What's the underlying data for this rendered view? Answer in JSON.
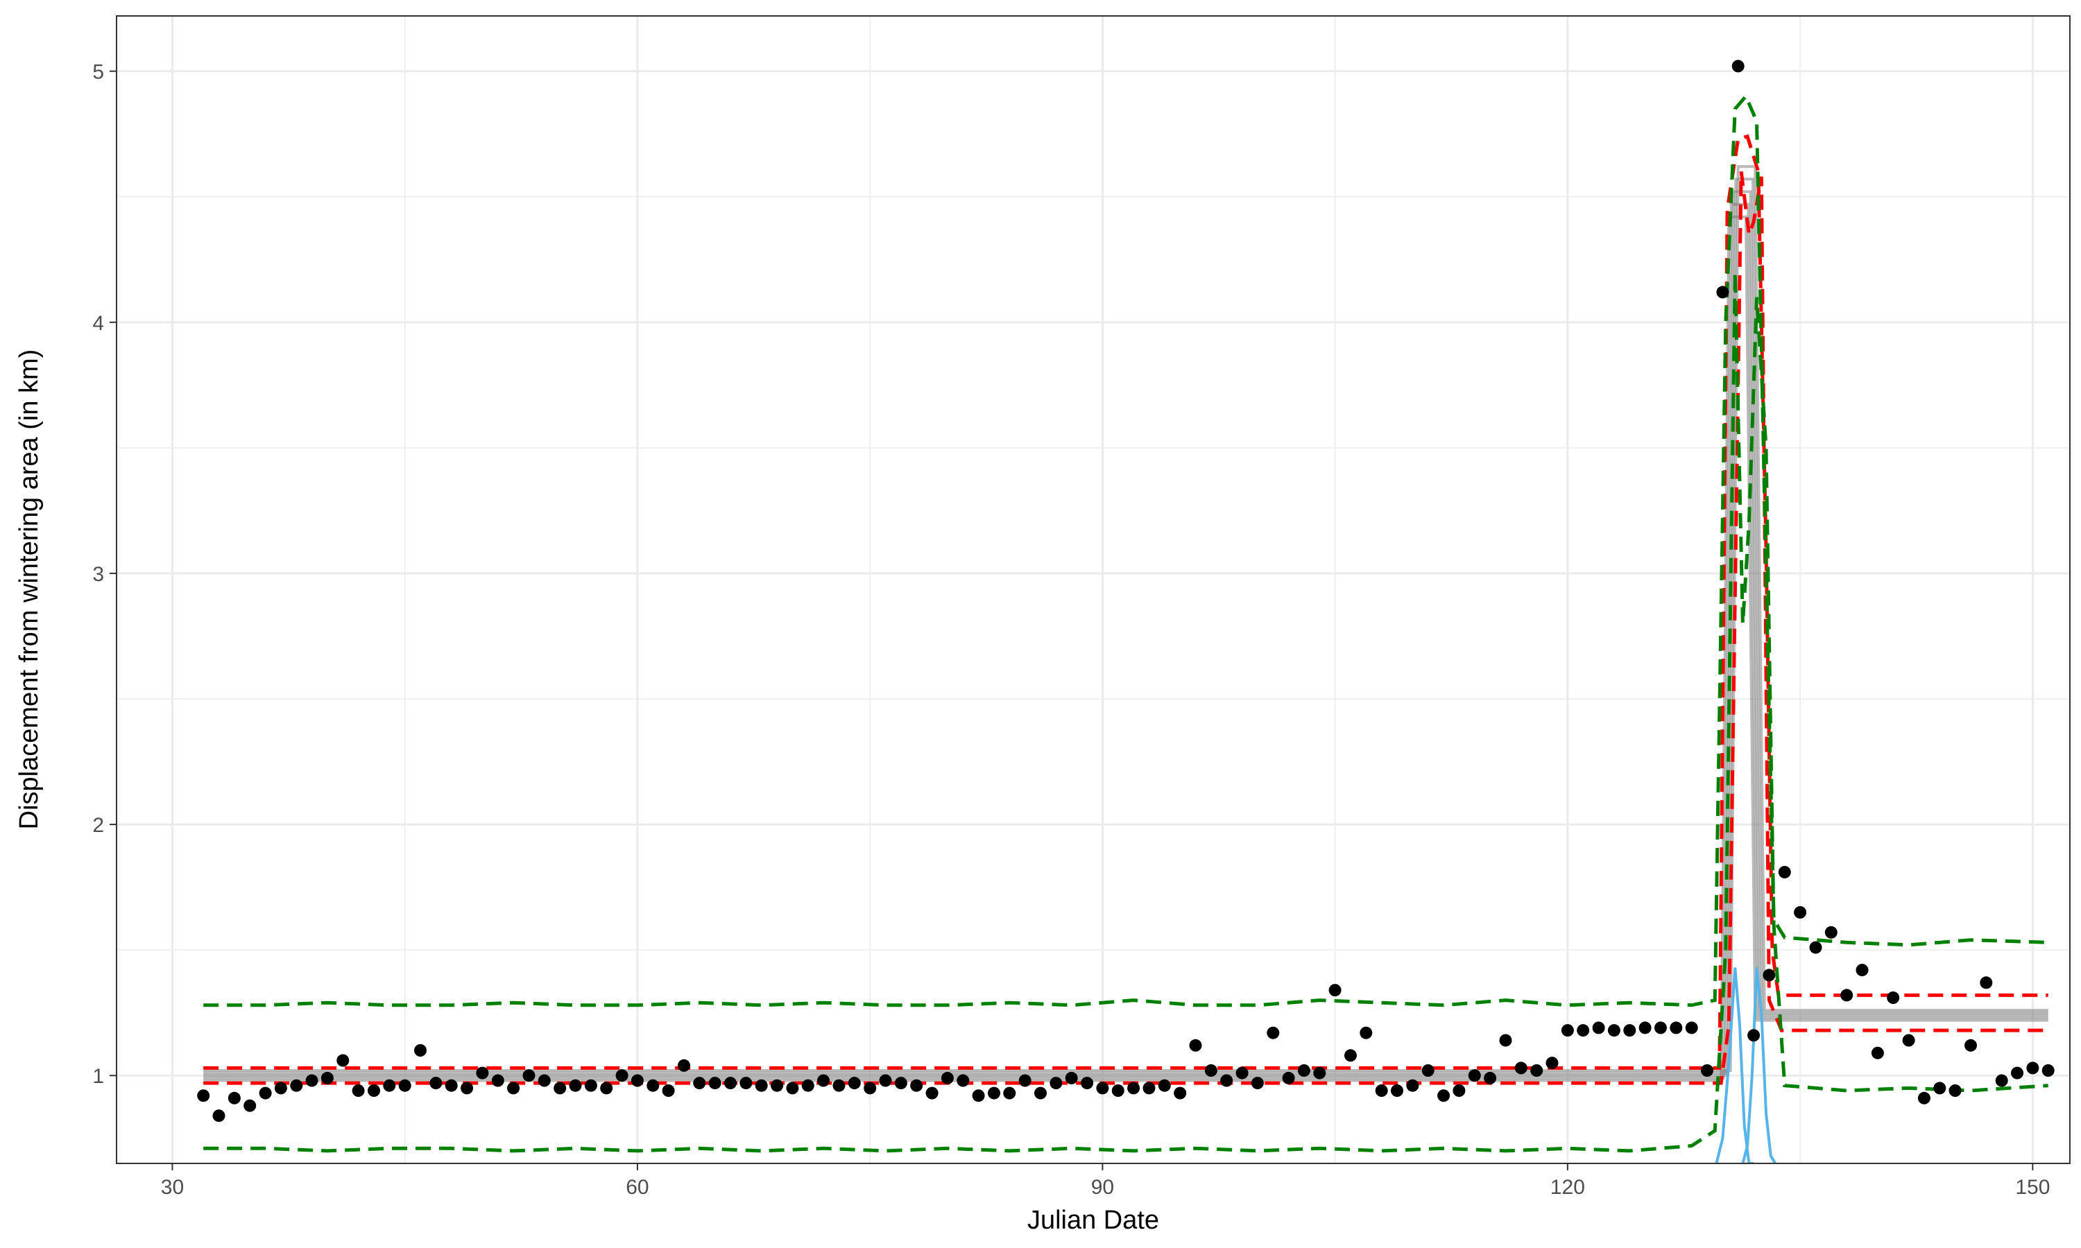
{
  "chart_data": {
    "type": "scatter",
    "title": "",
    "xlabel": "Julian Date",
    "ylabel": "Displacement from wintering area (in km)",
    "xlim": [
      26.4,
      152.4
    ],
    "ylim": [
      0.65,
      5.22
    ],
    "xticks": [
      30,
      60,
      90,
      120,
      150
    ],
    "xtick_labels": [
      "30",
      "60",
      "90",
      "120",
      "150"
    ],
    "yticks": [
      1,
      2,
      3,
      4,
      5
    ],
    "ytick_labels": [
      "1",
      "2",
      "3",
      "4",
      "5"
    ],
    "grid": true,
    "legend": "none",
    "colors": {
      "points": "#000000",
      "fit_lines": "#808080",
      "fit_ci": "#ff0000",
      "prediction_band": "#008000",
      "transition_density": "#56b4e9",
      "grid": "#ebebeb"
    },
    "points": {
      "x": [
        32,
        33,
        34,
        35,
        36,
        37,
        38,
        39,
        40,
        41,
        42,
        43,
        44,
        45,
        46,
        47,
        48,
        49,
        50,
        51,
        52,
        53,
        54,
        55,
        56,
        57,
        58,
        59,
        60,
        61,
        62,
        63,
        64,
        65,
        66,
        67,
        68,
        69,
        70,
        71,
        72,
        73,
        74,
        75,
        76,
        77,
        78,
        79,
        80,
        81,
        82,
        83,
        84,
        85,
        86,
        87,
        88,
        89,
        90,
        91,
        92,
        93,
        94,
        95,
        96,
        97,
        98,
        99,
        100,
        101,
        102,
        103,
        104,
        105,
        106,
        107,
        108,
        109,
        110,
        111,
        112,
        113,
        114,
        115,
        116,
        117,
        118,
        119,
        120,
        121,
        122,
        123,
        124,
        125,
        126,
        127,
        128,
        129,
        130,
        131,
        132,
        133,
        134,
        135,
        136,
        137,
        138,
        139,
        140,
        141,
        142,
        143,
        144,
        145,
        146,
        147,
        148,
        149,
        150,
        151
      ],
      "y": [
        0.92,
        0.84,
        0.91,
        0.88,
        0.93,
        0.95,
        0.96,
        0.98,
        0.99,
        1.06,
        0.94,
        0.94,
        0.96,
        0.96,
        1.1,
        0.97,
        0.96,
        0.95,
        1.01,
        0.98,
        0.95,
        1.0,
        0.98,
        0.95,
        0.96,
        0.96,
        0.95,
        1.0,
        0.98,
        0.96,
        0.94,
        1.04,
        0.97,
        0.97,
        0.97,
        0.97,
        0.96,
        0.96,
        0.95,
        0.96,
        0.98,
        0.96,
        0.97,
        0.95,
        0.98,
        0.97,
        0.96,
        0.93,
        0.99,
        0.98,
        0.92,
        0.93,
        0.93,
        0.98,
        0.93,
        0.97,
        0.99,
        0.97,
        0.95,
        0.94,
        0.95,
        0.95,
        0.96,
        0.93,
        1.12,
        1.02,
        0.98,
        1.01,
        0.97,
        1.17,
        0.99,
        1.02,
        1.01,
        1.34,
        1.08,
        1.17,
        0.94,
        0.94,
        0.96,
        1.02,
        0.92,
        0.94,
        1.0,
        0.99,
        1.14,
        1.03,
        1.02,
        1.05,
        1.18,
        1.18,
        1.19,
        1.18,
        1.18,
        1.19,
        1.19,
        1.19,
        1.19,
        1.02,
        4.12,
        5.02,
        1.16,
        1.4,
        1.81,
        1.65,
        1.51,
        1.57,
        1.32,
        1.42,
        1.09,
        1.31,
        1.14,
        0.91,
        0.95,
        0.94,
        1.12,
        1.37,
        0.98,
        1.01,
        1.03,
        1.02
      ]
    },
    "fit_lines": {
      "x": [
        32,
        130.2,
        130.7,
        131.8,
        132.4,
        133.2,
        151
      ],
      "y": [
        1.0,
        1.0,
        4.52,
        4.52,
        1.24,
        1.24,
        1.24
      ]
    },
    "fit_ci_upper": {
      "x": [
        32,
        129.8,
        130.3,
        131.0,
        131.6,
        132.3,
        132.8,
        133.2,
        133.6,
        151
      ],
      "y": [
        1.03,
        1.03,
        4.45,
        4.73,
        4.74,
        4.6,
        3.1,
        1.5,
        1.32,
        1.32
      ]
    },
    "fit_ci_lower": {
      "x": [
        32,
        129.9,
        130.4,
        131.2,
        131.7,
        132.0,
        132.5,
        133.0,
        133.8,
        151
      ],
      "y": [
        0.97,
        0.97,
        1.2,
        4.6,
        4.35,
        4.4,
        4.58,
        1.3,
        1.18,
        1.18
      ]
    },
    "prediction_band_upper": {
      "x": [
        32,
        36,
        40,
        44,
        48,
        52,
        56,
        60,
        64,
        68,
        72,
        76,
        80,
        84,
        88,
        92,
        96,
        100,
        104,
        108,
        112,
        116,
        120,
        124,
        128,
        129.5,
        130.2,
        130.8,
        131.5,
        132.2,
        132.8,
        133.3,
        134,
        138,
        142,
        146,
        151
      ],
      "y": [
        1.28,
        1.28,
        1.29,
        1.28,
        1.28,
        1.29,
        1.28,
        1.28,
        1.29,
        1.28,
        1.29,
        1.28,
        1.28,
        1.29,
        1.28,
        1.3,
        1.28,
        1.28,
        1.3,
        1.29,
        1.28,
        1.3,
        1.28,
        1.29,
        1.28,
        1.3,
        4.0,
        4.85,
        4.9,
        4.8,
        3.0,
        1.62,
        1.55,
        1.53,
        1.52,
        1.54,
        1.53
      ]
    },
    "prediction_band_lower": {
      "x": [
        32,
        36,
        40,
        44,
        48,
        52,
        56,
        60,
        64,
        68,
        72,
        76,
        80,
        84,
        88,
        92,
        96,
        100,
        104,
        108,
        112,
        116,
        120,
        124,
        128,
        129.5,
        130.2,
        130.8,
        131.3,
        131.7,
        132.2,
        132.8,
        133.3,
        134,
        138,
        142,
        146,
        151
      ],
      "y": [
        0.71,
        0.71,
        0.7,
        0.71,
        0.71,
        0.7,
        0.71,
        0.7,
        0.71,
        0.7,
        0.71,
        0.7,
        0.71,
        0.7,
        0.71,
        0.7,
        0.71,
        0.7,
        0.71,
        0.7,
        0.71,
        0.7,
        0.71,
        0.7,
        0.72,
        0.78,
        1.5,
        4.2,
        2.8,
        3.2,
        4.1,
        3.5,
        1.6,
        0.96,
        0.94,
        0.95,
        0.94,
        0.96
      ]
    },
    "transition_density_1": {
      "x": [
        129.6,
        130.0,
        130.4,
        130.8,
        131.1,
        131.4,
        131.7,
        132.0
      ],
      "y": [
        0.65,
        0.75,
        1.05,
        1.43,
        1.2,
        0.8,
        0.65,
        0.65
      ]
    },
    "transition_density_2": {
      "x": [
        131.3,
        131.6,
        131.9,
        132.2,
        132.5,
        132.8,
        133.1,
        133.4
      ],
      "y": [
        0.65,
        0.72,
        1.0,
        1.43,
        1.25,
        0.85,
        0.68,
        0.65
      ]
    }
  }
}
